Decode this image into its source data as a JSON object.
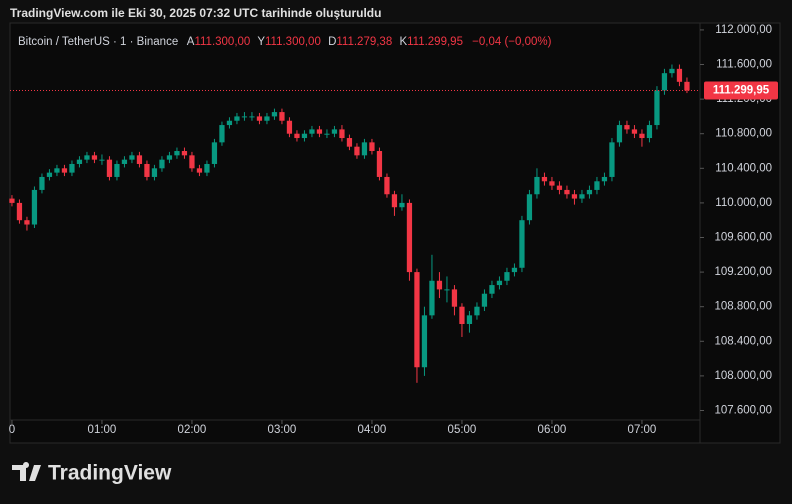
{
  "header": "TradingView.com ile Eki 30, 2025 07:32 UTC tarihinde oluşturuldu",
  "legend": {
    "symbol": "Bitcoin / TetherUS · 1 · Binance",
    "open_label": "A",
    "open": "111.300,00",
    "high_label": "Y",
    "high": "111.300,00",
    "low_label": "D",
    "low": "111.279,38",
    "close_label": "K",
    "close": "111.299,95",
    "change": "−0,04 (−0,00%)"
  },
  "logo": "TradingView",
  "chart_data": {
    "type": "candlestick",
    "up_color": "#089981",
    "down_color": "#f23645",
    "x": [
      0,
      5,
      10,
      15,
      20,
      25,
      30,
      35,
      40,
      45,
      50,
      55,
      60,
      65,
      70,
      75,
      80,
      85,
      90,
      95,
      100,
      105,
      110,
      115,
      120,
      125,
      130,
      135,
      140,
      145,
      150,
      155,
      160,
      165,
      170,
      175,
      180,
      185,
      190,
      195,
      200,
      205,
      210,
      215,
      220,
      225,
      230,
      235,
      240,
      245,
      250,
      255,
      260,
      265,
      270,
      275,
      280,
      285,
      290,
      295,
      300,
      305,
      310,
      315,
      320,
      325,
      330,
      335,
      340,
      345,
      350,
      355,
      360,
      365,
      370,
      375,
      380,
      385,
      390,
      395,
      400,
      405,
      410,
      415,
      420,
      425,
      430,
      435,
      440,
      445,
      450
    ],
    "open": [
      110050,
      110000,
      109800,
      109750,
      110150,
      110300,
      110350,
      110400,
      110350,
      110450,
      110500,
      110550,
      110500,
      110500,
      110300,
      110450,
      110500,
      110550,
      110450,
      110300,
      110400,
      110500,
      110550,
      110600,
      110550,
      110400,
      110350,
      110450,
      110700,
      110900,
      110950,
      111000,
      111000,
      111000,
      110950,
      111000,
      111050,
      110950,
      110800,
      110750,
      110800,
      110850,
      110800,
      110800,
      110850,
      110750,
      110650,
      110550,
      110700,
      110600,
      110300,
      110100,
      109950,
      110000,
      109200,
      108100,
      108700,
      109100,
      109000,
      109000,
      108800,
      108600,
      108700,
      108800,
      108950,
      109050,
      109100,
      109200,
      109250,
      109800,
      110100,
      110300,
      110250,
      110200,
      110150,
      110100,
      110050,
      110100,
      110150,
      110250,
      110300,
      110700,
      110900,
      110850,
      110800,
      110750,
      110900,
      111300,
      111500,
      111550,
      111400
    ],
    "high": [
      110090,
      110040,
      109840,
      110190,
      110340,
      110390,
      110440,
      110440,
      110490,
      110540,
      110590,
      110590,
      110560,
      110540,
      110490,
      110540,
      110590,
      110590,
      110490,
      110440,
      110540,
      110590,
      110640,
      110640,
      110590,
      110440,
      110490,
      110740,
      110940,
      110990,
      111040,
      111050,
      111050,
      111040,
      111040,
      111090,
      111090,
      110990,
      110840,
      110840,
      110890,
      110890,
      110850,
      110890,
      110900,
      110790,
      110690,
      110740,
      110740,
      110640,
      110340,
      110140,
      110100,
      110040,
      109240,
      108800,
      109400,
      109200,
      109150,
      109050,
      108840,
      108750,
      108850,
      109000,
      109100,
      109150,
      109250,
      109300,
      109850,
      110150,
      110400,
      110350,
      110300,
      110250,
      110200,
      110150,
      110150,
      110200,
      110300,
      110350,
      110750,
      110950,
      110950,
      110900,
      110850,
      110950,
      111350,
      111550,
      111600,
      111600,
      111450
    ],
    "low": [
      109960,
      109760,
      109680,
      109710,
      110110,
      110260,
      110310,
      110310,
      110310,
      110410,
      110460,
      110460,
      110440,
      110260,
      110260,
      110410,
      110460,
      110410,
      110260,
      110260,
      110360,
      110460,
      110510,
      110510,
      110360,
      110310,
      110310,
      110410,
      110660,
      110860,
      110910,
      110950,
      110950,
      110910,
      110910,
      110960,
      110910,
      110760,
      110710,
      110710,
      110760,
      110760,
      110750,
      110760,
      110710,
      110610,
      110510,
      110510,
      110560,
      110260,
      110060,
      109850,
      109910,
      109100,
      107920,
      108000,
      108660,
      108900,
      108850,
      108700,
      108450,
      108500,
      108650,
      108750,
      108900,
      109000,
      109050,
      109150,
      109200,
      109750,
      110050,
      110200,
      110150,
      110100,
      110050,
      109980,
      110000,
      110050,
      110100,
      110200,
      110250,
      110650,
      110800,
      110750,
      110650,
      110700,
      110850,
      111250,
      111450,
      111350,
      111270
    ],
    "close": [
      110000,
      109800,
      109750,
      110150,
      110300,
      110350,
      110400,
      110350,
      110450,
      110500,
      110550,
      110500,
      110500,
      110300,
      110450,
      110500,
      110550,
      110450,
      110300,
      110400,
      110500,
      110550,
      110600,
      110550,
      110400,
      110350,
      110450,
      110700,
      110900,
      110950,
      111000,
      111000,
      111000,
      110950,
      111000,
      111050,
      110950,
      110800,
      110750,
      110800,
      110850,
      110800,
      110800,
      110850,
      110750,
      110650,
      110550,
      110700,
      110600,
      110300,
      110100,
      109950,
      110000,
      109200,
      108100,
      108700,
      109100,
      109000,
      109000,
      108800,
      108600,
      108700,
      108800,
      108950,
      109050,
      109100,
      109200,
      109250,
      109800,
      110100,
      110300,
      110250,
      110200,
      110150,
      110100,
      110050,
      110100,
      110150,
      110250,
      110300,
      110700,
      110900,
      110850,
      110800,
      110750,
      110900,
      111300,
      111500,
      111550,
      111400,
      111300
    ],
    "xlim": [
      -1.3,
      458.7
    ],
    "xticks": [
      0,
      {
        "value": 60,
        "label": "01:00"
      },
      {
        "value": 120,
        "label": "02:00"
      },
      {
        "value": 180,
        "label": "03:00"
      },
      {
        "value": 240,
        "label": "04:00"
      },
      {
        "value": 300,
        "label": "05:00"
      },
      {
        "value": 360,
        "label": "06:00"
      },
      {
        "value": 420,
        "label": "07:00"
      }
    ],
    "ylim": [
      107490,
      112080
    ],
    "yticks": [
      {
        "value": 107600,
        "label": "107.600,00"
      },
      {
        "value": 108000,
        "label": "108.000,00"
      },
      {
        "value": 108400,
        "label": "108.400,00"
      },
      {
        "value": 108800,
        "label": "108.800,00"
      },
      {
        "value": 109200,
        "label": "109.200,00"
      },
      {
        "value": 109600,
        "label": "109.600,00"
      },
      {
        "value": 110000,
        "label": "110.000,00"
      },
      {
        "value": 110400,
        "label": "110.400,00"
      },
      {
        "value": 110800,
        "label": "110.800,00"
      },
      {
        "value": 111200,
        "label": "111.200,00"
      },
      {
        "value": 111600,
        "label": "111.600,00"
      },
      {
        "value": 112000,
        "label": "112.000,00"
      }
    ],
    "last_price": {
      "value": 111299.95,
      "label": "111.299,95",
      "color": "#f23645"
    }
  }
}
